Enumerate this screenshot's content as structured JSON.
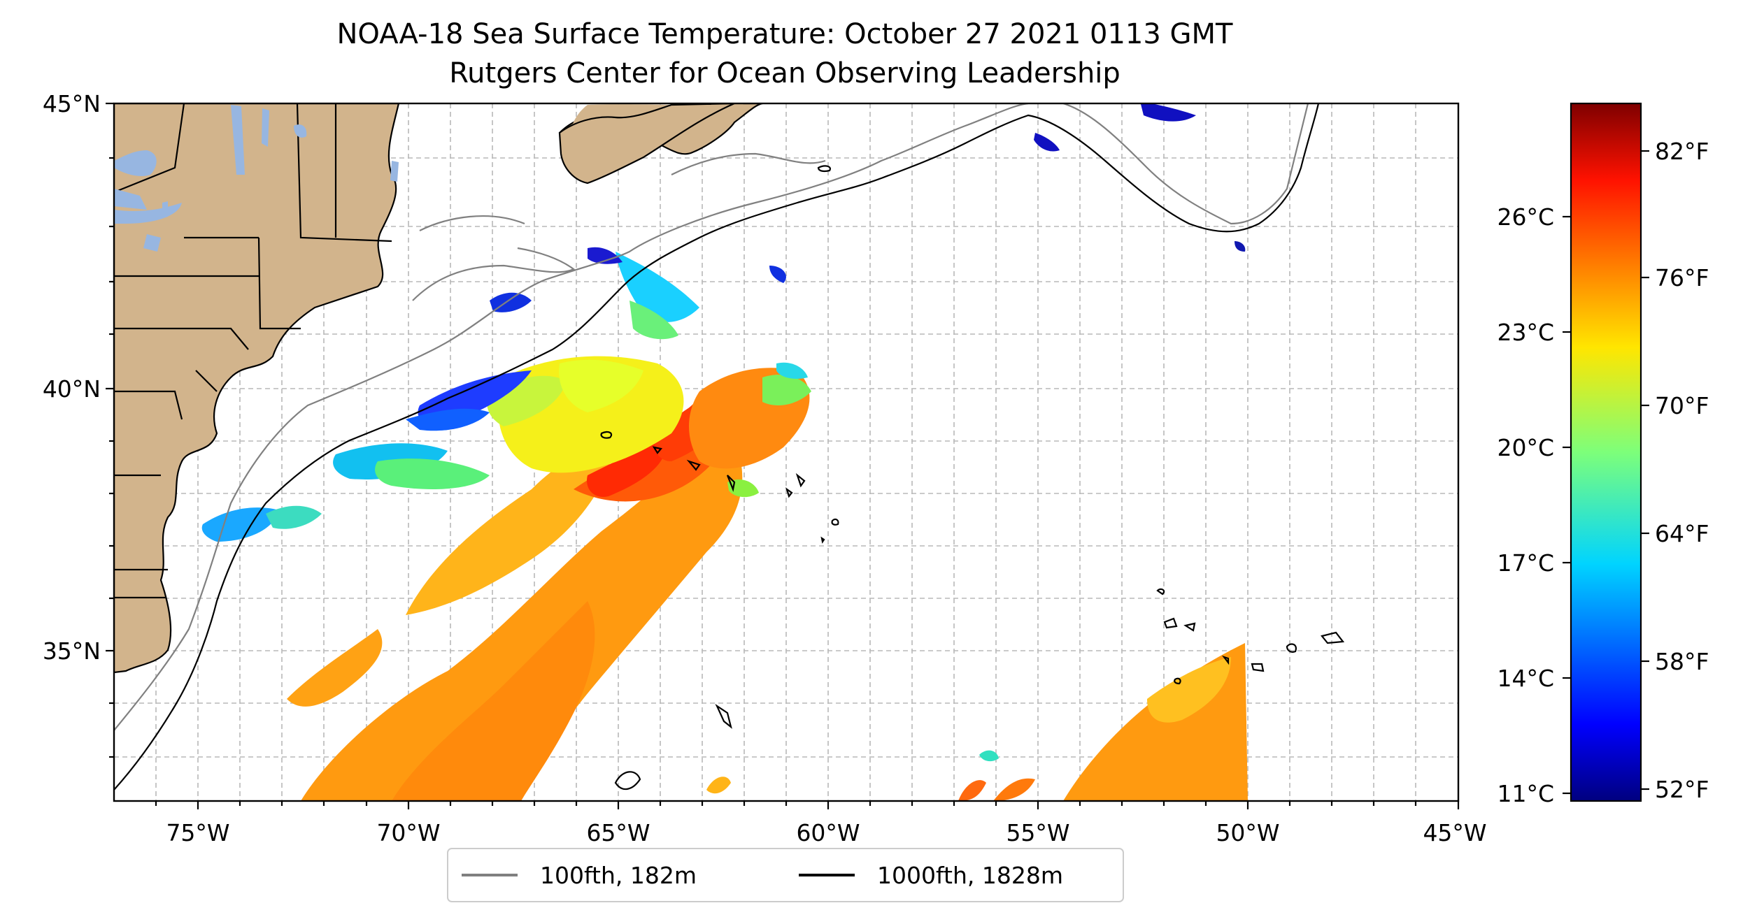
{
  "title": {
    "line1": "NOAA-18 Sea Surface Temperature: October 27 2021 0113 GMT",
    "line2": "Rutgers Center for Ocean Observing Leadership"
  },
  "map": {
    "lon_range": [
      -77,
      -45
    ],
    "lat_range": [
      32,
      45
    ],
    "lon_ticks": [
      "75°W",
      "70°W",
      "65°W",
      "60°W",
      "55°W",
      "50°W",
      "45°W"
    ],
    "lat_ticks": [
      "35°N",
      "40°N",
      "45°N"
    ],
    "colors": {
      "land": "#d2b48c",
      "lakes": "#97b6e1",
      "grid": "#b0b0b0"
    }
  },
  "legend": {
    "items": [
      {
        "label": "100fth, 182m",
        "color": "#808080"
      },
      {
        "label": "1000fth, 1828m",
        "color": "#000000"
      }
    ]
  },
  "colorbar": {
    "colormap": "jet",
    "celsius_ticks": [
      "26°C",
      "23°C",
      "20°C",
      "17°C",
      "14°C",
      "11°C"
    ],
    "fahrenheit_ticks": [
      "82°F",
      "76°F",
      "70°F",
      "64°F",
      "58°F",
      "52°F"
    ]
  }
}
